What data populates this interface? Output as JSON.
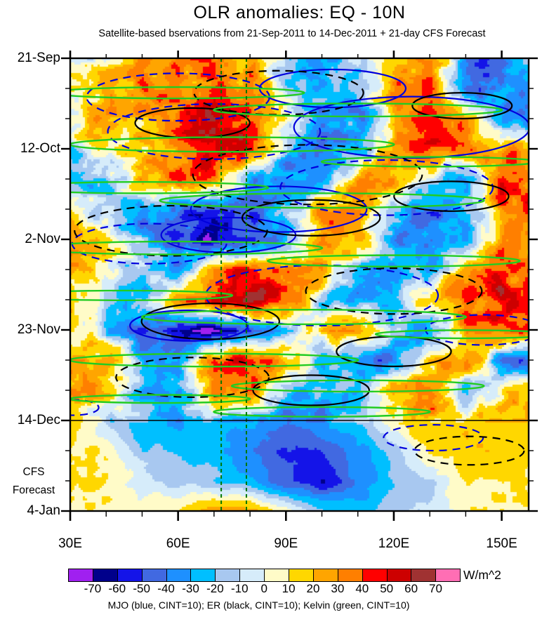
{
  "header": {
    "title": "OLR anomalies: EQ - 10N",
    "subtitle": "Satellite-based bservations from 21-Sep-2011 to 14-Dec-2011 + 21-day CFS Forecast"
  },
  "footer": {
    "unit_label": "W/m^2",
    "caption": "MJO (blue, CINT=10); ER (black, CINT=10); Kelvin (green, CINT=10)"
  },
  "chart_data": {
    "type": "heatmap",
    "subtype": "hovmoller-time-longitude-filled-contour",
    "title": "OLR anomalies: EQ - 10N",
    "subtitle": "Satellite-based bservations from 21-Sep-2011 to 14-Dec-2011 + 21-day CFS Forecast",
    "x_axis": {
      "tick_labels": [
        "30E",
        "60E",
        "90E",
        "120E",
        "150E"
      ],
      "major_lons": [
        30,
        60,
        90,
        120,
        150
      ],
      "minor_step_deg": 10,
      "range_deg": [
        30,
        157.5
      ]
    },
    "y_axis": {
      "tick_labels": [
        "21-Sep",
        "12-Oct",
        "2-Nov",
        "23-Nov",
        "14-Dec",
        "4-Jan"
      ],
      "major_days": [
        0,
        21,
        42,
        63,
        84,
        105
      ],
      "minor_step_days": 7,
      "range_days": [
        0,
        105
      ],
      "direction": "time-increases-downward"
    },
    "forecast_label": [
      "CFS",
      "Forecast"
    ],
    "forecast_divider_day": 84,
    "forecast_divider_date": "14-Dec",
    "longitude_markers_deg": [
      72,
      79
    ],
    "colorbar": {
      "levels": [
        "-70",
        "-60",
        "-50",
        "-40",
        "-30",
        "-20",
        "-10",
        "0",
        "10",
        "20",
        "30",
        "40",
        "50",
        "60",
        "70"
      ],
      "colors": [
        "#A020F0",
        "#00008B",
        "#1414E8",
        "#4169E1",
        "#1E90FF",
        "#00BFFF",
        "#A8C8F0",
        "#D6ECFA",
        "#FFFBC8",
        "#FFD700",
        "#FFA500",
        "#FF7F00",
        "#FF0000",
        "#CD0000",
        "#A03232",
        "#FF6EB4"
      ],
      "unit": "W/m^2",
      "cint": 10
    },
    "grid": {
      "comment": "Estimated OLR anomaly values (W/m^2) read from the shaded field on a coarse 10-deg x 7-day grid",
      "lons": [
        30,
        40,
        50,
        60,
        70,
        80,
        90,
        100,
        110,
        120,
        130,
        140,
        150,
        160
      ],
      "dates": [
        "21-Sep",
        "28-Sep",
        "5-Oct",
        "12-Oct",
        "19-Oct",
        "26-Oct",
        "2-Nov",
        "9-Nov",
        "16-Nov",
        "23-Nov",
        "30-Nov",
        "7-Dec",
        "14-Dec",
        "21-Dec",
        "28-Dec",
        "4-Jan"
      ],
      "values": [
        [
          -5,
          8,
          28,
          35,
          30,
          18,
          -18,
          -28,
          -12,
          22,
          38,
          -38,
          -48,
          20
        ],
        [
          5,
          18,
          32,
          28,
          45,
          35,
          -22,
          -32,
          -18,
          28,
          48,
          -52,
          -35,
          -42
        ],
        [
          12,
          25,
          18,
          38,
          52,
          42,
          12,
          -28,
          -38,
          18,
          42,
          28,
          -42,
          -28
        ],
        [
          -18,
          5,
          15,
          32,
          58,
          48,
          -22,
          -42,
          -28,
          28,
          48,
          38,
          28,
          32
        ],
        [
          -22,
          -12,
          22,
          42,
          38,
          -32,
          -48,
          -22,
          28,
          38,
          -22,
          -38,
          42,
          38
        ],
        [
          12,
          -15,
          -28,
          -42,
          -58,
          -48,
          -22,
          28,
          38,
          -28,
          -42,
          -28,
          32,
          42
        ],
        [
          22,
          15,
          -22,
          -48,
          -62,
          -52,
          -32,
          32,
          22,
          -32,
          -48,
          -32,
          28,
          32
        ],
        [
          28,
          12,
          -18,
          -28,
          32,
          48,
          38,
          22,
          -28,
          -38,
          -22,
          32,
          42,
          28
        ],
        [
          18,
          -12,
          -22,
          28,
          52,
          62,
          42,
          -22,
          -32,
          -18,
          28,
          38,
          48,
          32
        ],
        [
          12,
          -22,
          -42,
          -68,
          -78,
          -48,
          -28,
          22,
          32,
          -22,
          -38,
          28,
          42,
          38
        ],
        [
          22,
          28,
          -22,
          -32,
          48,
          58,
          32,
          -28,
          -42,
          -32,
          22,
          32,
          -38,
          -48
        ],
        [
          28,
          18,
          -28,
          -32,
          38,
          42,
          -22,
          -32,
          -22,
          28,
          32,
          -28,
          18,
          22
        ],
        [
          18,
          -12,
          -28,
          -32,
          -22,
          -28,
          -38,
          -32,
          -22,
          12,
          22,
          18,
          12,
          18
        ],
        [
          12,
          8,
          -18,
          -22,
          -28,
          -38,
          -52,
          -48,
          -32,
          -18,
          12,
          18,
          22,
          12
        ],
        [
          15,
          12,
          -5,
          -12,
          -18,
          -28,
          -48,
          -58,
          -42,
          -22,
          -12,
          8,
          12,
          8
        ],
        [
          10,
          8,
          8,
          12,
          32,
          28,
          8,
          -18,
          -22,
          -12,
          -8,
          8,
          12,
          8
        ]
      ]
    },
    "overlays": {
      "legend": "MJO (blue, CINT=10); ER (black, CINT=10); Kelvin (green, CINT=10)",
      "waves": [
        {
          "name": "MJO",
          "color": "#0000DD",
          "cint": 10,
          "direction": "eastward"
        },
        {
          "name": "ER",
          "color": "#000000",
          "cint": 10,
          "direction": "westward"
        },
        {
          "name": "Kelvin",
          "color": "#22CC22",
          "cint": 10,
          "direction": "eastward"
        }
      ],
      "marker_color": "#007700",
      "ellipses_format": [
        "wave",
        "style",
        "center_lon",
        "center_day",
        "span_deg",
        "span_days"
      ],
      "ellipses": [
        [
          "MJO",
          "dashed",
          60,
          9,
          48,
          14
        ],
        [
          "MJO",
          "dashed",
          70,
          17,
          55,
          18
        ],
        [
          "MJO",
          "solid",
          103,
          7,
          38,
          12
        ],
        [
          "MJO",
          "solid",
          125,
          16,
          60,
          22
        ],
        [
          "MJO",
          "dashed",
          118,
          30,
          55,
          18
        ],
        [
          "MJO",
          "solid",
          74,
          41,
          34,
          13
        ],
        [
          "MJO",
          "dashed",
          52,
          43,
          40,
          13
        ],
        [
          "MJO",
          "dashed",
          100,
          55,
          60,
          20
        ],
        [
          "MJO",
          "solid",
          63,
          62,
          30,
          11
        ],
        [
          "MJO",
          "solid",
          88,
          35,
          45,
          16
        ],
        [
          "MJO",
          "dashed",
          145,
          63,
          30,
          10
        ],
        [
          "MJO",
          "dashed",
          131,
          88,
          22,
          14
        ],
        [
          "MJO",
          "dashed",
          31,
          81,
          10,
          8
        ],
        [
          "ER",
          "solid",
          64,
          15,
          30,
          9
        ],
        [
          "ER",
          "dashed",
          88,
          8,
          44,
          14
        ],
        [
          "ER",
          "solid",
          139,
          11,
          26,
          8
        ],
        [
          "ER",
          "dashed",
          96,
          27,
          60,
          18
        ],
        [
          "ER",
          "solid",
          97,
          37,
          36,
          11
        ],
        [
          "ER",
          "solid",
          136,
          32,
          30,
          9
        ],
        [
          "ER",
          "dashed",
          58,
          40,
          50,
          16
        ],
        [
          "ER",
          "solid",
          69,
          61,
          36,
          11
        ],
        [
          "ER",
          "dashed",
          120,
          54,
          46,
          14
        ],
        [
          "ER",
          "solid",
          97,
          77,
          30,
          10
        ],
        [
          "ER",
          "dashed",
          64,
          74,
          40,
          12
        ],
        [
          "ER",
          "solid",
          120,
          68,
          30,
          9
        ],
        [
          "ER",
          "dashed",
          141,
          91,
          28,
          10
        ],
        [
          "Kelvin",
          "solid",
          60,
          8,
          70,
          4
        ],
        [
          "Kelvin",
          "solid",
          110,
          12,
          80,
          5
        ],
        [
          "Kelvin",
          "solid",
          75,
          20,
          90,
          5
        ],
        [
          "Kelvin",
          "solid",
          130,
          24,
          60,
          4
        ],
        [
          "Kelvin",
          "solid",
          50,
          30,
          70,
          4
        ],
        [
          "Kelvin",
          "solid",
          100,
          33,
          90,
          5
        ],
        [
          "Kelvin",
          "solid",
          60,
          44,
          80,
          5
        ],
        [
          "Kelvin",
          "solid",
          120,
          47,
          70,
          4
        ],
        [
          "Kelvin",
          "solid",
          45,
          55,
          60,
          4
        ],
        [
          "Kelvin",
          "solid",
          95,
          60,
          90,
          5
        ],
        [
          "Kelvin",
          "solid",
          140,
          64,
          50,
          3
        ],
        [
          "Kelvin",
          "solid",
          70,
          70,
          80,
          5
        ],
        [
          "Kelvin",
          "solid",
          110,
          76,
          70,
          4
        ],
        [
          "Kelvin",
          "solid",
          55,
          79,
          50,
          3
        ],
        [
          "Kelvin",
          "solid",
          100,
          82,
          60,
          4
        ]
      ]
    }
  }
}
